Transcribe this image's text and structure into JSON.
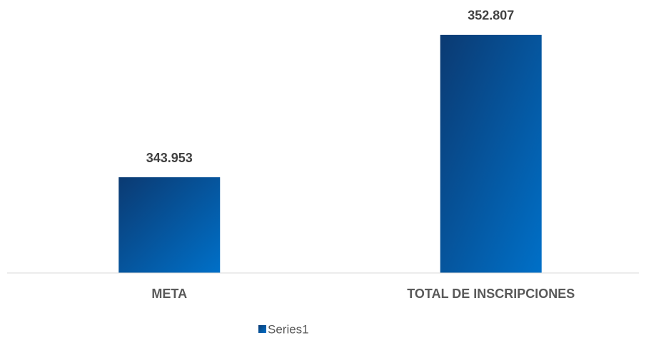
{
  "chart_data": {
    "type": "bar",
    "categories": [
      "META",
      "TOTAL DE INSCRIPCIONES"
    ],
    "series": [
      {
        "name": "Series1",
        "color": "#0070c8",
        "values": [
          343953,
          352807
        ],
        "value_labels": [
          "343.953",
          "352.807"
        ]
      }
    ],
    "ylim": [
      338000,
      354000
    ]
  }
}
